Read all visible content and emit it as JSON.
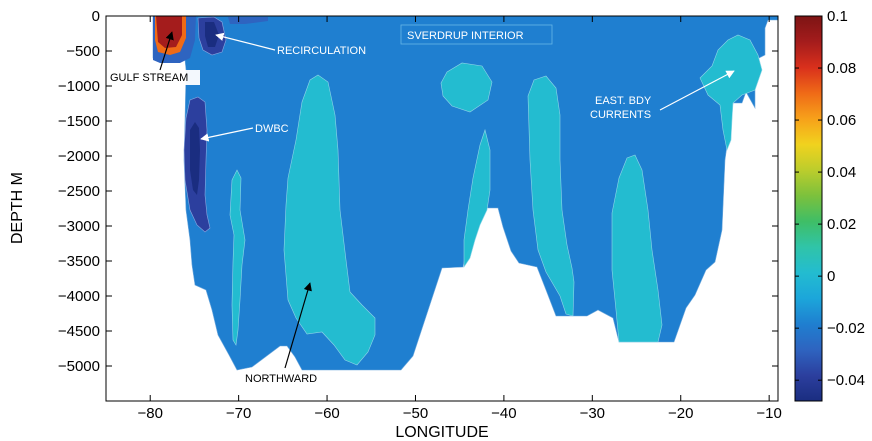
{
  "chart_data": {
    "type": "contour",
    "xlabel": "LONGITUDE",
    "ylabel": "DEPTH M",
    "xlim": [
      -85,
      -9
    ],
    "ylim": [
      -5500,
      0
    ],
    "x_ticks": [
      "-80",
      "-70",
      "-60",
      "-50",
      "-40",
      "-30",
      "-20",
      "-10"
    ],
    "y_ticks": [
      "0",
      "-500",
      "-1000",
      "-1500",
      "-2000",
      "-2500",
      "-3000",
      "-3500",
      "-4000",
      "-4500",
      "-5000"
    ],
    "colorbar": {
      "range": [
        -0.048,
        0.1
      ],
      "ticks": [
        "0.1",
        "0.08",
        "0.06",
        "0.04",
        "0.02",
        "0",
        "-0.02",
        "-0.04"
      ],
      "colors": [
        "#1a2d80",
        "#2c3f9e",
        "#2e64c0",
        "#1f7fd0",
        "#1ca6da",
        "#23bcd0",
        "#30c4a8",
        "#3fbe66",
        "#7cc13c",
        "#bccd2c",
        "#f1d21e",
        "#f7a11a",
        "#ef6a17",
        "#d9301c",
        "#a41c1c",
        "#7d1414"
      ]
    },
    "annotations": [
      {
        "text": "GULF STREAM",
        "color": "black"
      },
      {
        "text": "RECIRCULATION",
        "color": "white"
      },
      {
        "text": "SVERDRUP INTERIOR",
        "color": "white"
      },
      {
        "text": "DWBC",
        "color": "white"
      },
      {
        "text": "EAST. BDY",
        "color": "white"
      },
      {
        "text": "CURRENTS",
        "color": "white"
      },
      {
        "text": "NORTHWARD",
        "color": "black"
      }
    ],
    "regions": [
      {
        "name": "interior",
        "value": -0.01
      },
      {
        "name": "northward-lobes",
        "value": 0.005
      },
      {
        "name": "recirculation",
        "value": -0.03
      },
      {
        "name": "dwbc",
        "value": -0.035
      },
      {
        "name": "gulf-stream",
        "value": 0.1
      }
    ]
  }
}
